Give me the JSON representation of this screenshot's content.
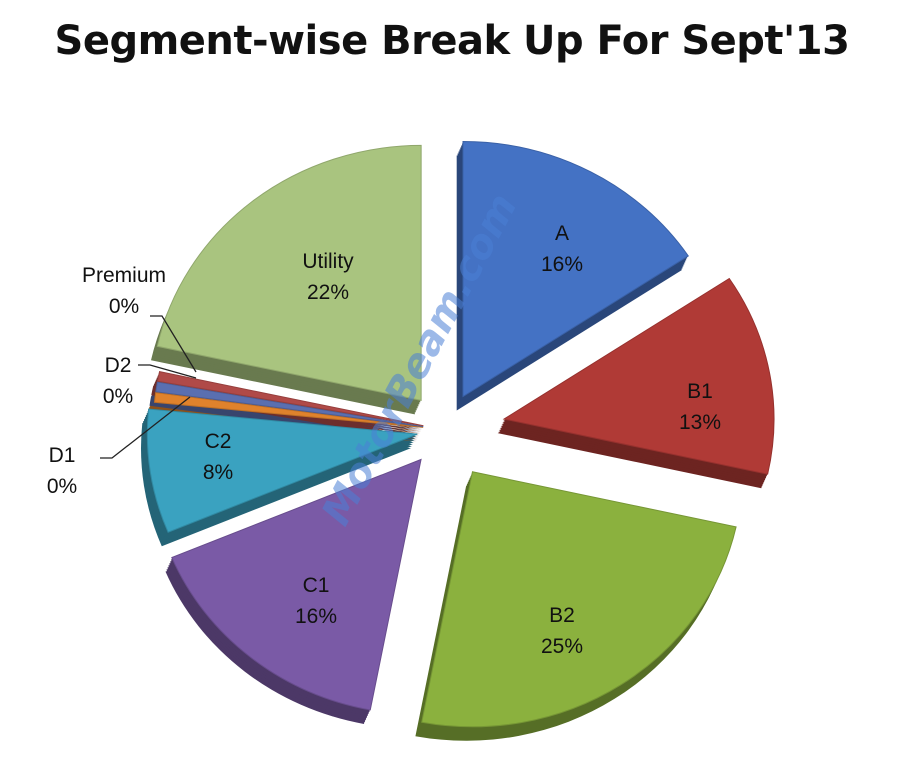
{
  "chart_data": {
    "type": "pie",
    "title": "Segment-wise Break Up For Sept'13",
    "slices": [
      {
        "label": "A",
        "value": 16,
        "pct_label": "16%",
        "color": "#4472c4"
      },
      {
        "label": "B1",
        "value": 13,
        "pct_label": "13%",
        "color": "#b03a36"
      },
      {
        "label": "B2",
        "value": 25,
        "pct_label": "25%",
        "color": "#8bb13e"
      },
      {
        "label": "C1",
        "value": 16,
        "pct_label": "16%",
        "color": "#7a5aa6"
      },
      {
        "label": "C2",
        "value": 8,
        "pct_label": "8%",
        "color": "#3aa2c0"
      },
      {
        "label": "D1",
        "value": 0,
        "pct_label": "0%",
        "color": "#e0822c"
      },
      {
        "label": "D2",
        "value": 0,
        "pct_label": "0%",
        "color": "#5a6fb0"
      },
      {
        "label": "Premium",
        "value": 0,
        "pct_label": "0%",
        "color": "#b04a48"
      },
      {
        "label": "Utility",
        "value": 22,
        "pct_label": "22%",
        "color": "#a9c47f"
      }
    ],
    "style": "exploded-3d"
  },
  "watermark": "MotorBeam.com"
}
